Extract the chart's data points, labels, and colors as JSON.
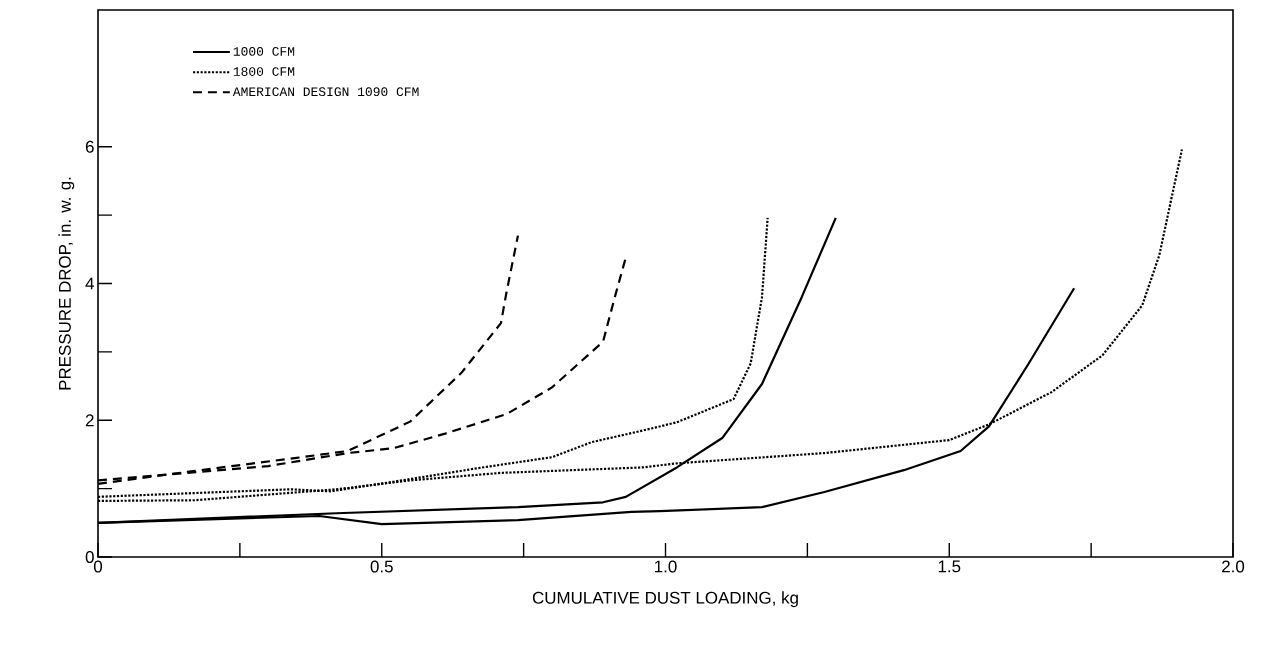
{
  "chart_data": {
    "type": "line",
    "xlabel": "CUMULATIVE DUST LOADING, kg",
    "ylabel": "PRESSURE DROP, in. w. g.",
    "xlim": [
      0,
      2
    ],
    "ylim": [
      0,
      8
    ],
    "xticks": [
      0,
      {
        "value": 0.25,
        "label": null
      },
      0.5,
      {
        "value": 0.75,
        "label": null
      },
      {
        "value": 1,
        "label": "1.0"
      },
      {
        "value": 1.25,
        "label": null
      },
      1.5,
      {
        "value": 1.75,
        "label": null
      },
      {
        "value": 2,
        "label": "2.0"
      }
    ],
    "yticks": [
      0,
      {
        "value": 1,
        "label": null
      },
      2,
      {
        "value": 3,
        "label": null
      },
      4,
      {
        "value": 5,
        "label": null
      },
      6
    ],
    "grid": false,
    "legend": "top left",
    "marker": "none",
    "series": [
      {
        "name": "1000 CFM",
        "color": "#000000",
        "line_style": "solid",
        "x": [
          0,
          0.42,
          0.74,
          0.89,
          0.93,
          1.02,
          1.1,
          1.17,
          1.24,
          1.3
        ],
        "values": [
          0.5,
          0.64,
          0.73,
          0.8,
          0.88,
          1.31,
          1.74,
          2.53,
          3.8,
          4.96
        ]
      },
      {
        "color": "#000000",
        "line_style": "solid",
        "x": [
          0,
          0.39,
          0.5,
          0.74,
          0.94,
          0.99,
          1.17,
          1.28,
          1.42,
          1.52,
          1.57,
          1.64,
          1.72
        ],
        "values": [
          0.5,
          0.6,
          0.48,
          0.54,
          0.66,
          0.67,
          0.73,
          0.95,
          1.27,
          1.55,
          1.91,
          2.83,
          3.93
        ]
      },
      {
        "name": "1800 CFM",
        "color": "#000000",
        "line_style": "dotted",
        "x": [
          0,
          0.34,
          0.41,
          0.52,
          0.67,
          0.8,
          0.87,
          0.96,
          1.02,
          1.12,
          1.15,
          1.17,
          1.18
        ],
        "values": [
          0.88,
          0.99,
          0.96,
          1.1,
          1.3,
          1.46,
          1.68,
          1.85,
          1.97,
          2.31,
          2.83,
          3.8,
          4.96
        ]
      },
      {
        "color": "#000000",
        "line_style": "dotted",
        "x": [
          0,
          0.17,
          0.42,
          0.55,
          0.71,
          0.96,
          1.02,
          1.28,
          1.5,
          1.57,
          1.68,
          1.77,
          1.84,
          1.87,
          1.91
        ],
        "values": [
          0.82,
          0.83,
          0.99,
          1.12,
          1.23,
          1.31,
          1.37,
          1.52,
          1.71,
          1.94,
          2.41,
          2.95,
          3.68,
          4.41,
          5.96
        ]
      },
      {
        "name": "AMERICAN DESIGN 1090 CFM",
        "color": "#000000",
        "line_style": "dashed",
        "x": [
          0,
          0.18,
          0.35,
          0.44,
          0.55,
          0.64,
          0.71,
          0.72,
          0.74
        ],
        "values": [
          1.07,
          1.27,
          1.45,
          1.55,
          1.98,
          2.69,
          3.42,
          3.88,
          4.7
        ]
      },
      {
        "color": "#000000",
        "line_style": "dashed",
        "x": [
          0,
          0.3,
          0.44,
          0.52,
          0.61,
          0.72,
          0.8,
          0.89,
          0.91,
          0.93
        ],
        "values": [
          1.12,
          1.33,
          1.52,
          1.59,
          1.8,
          2.09,
          2.48,
          3.15,
          3.78,
          4.38
        ]
      }
    ]
  }
}
